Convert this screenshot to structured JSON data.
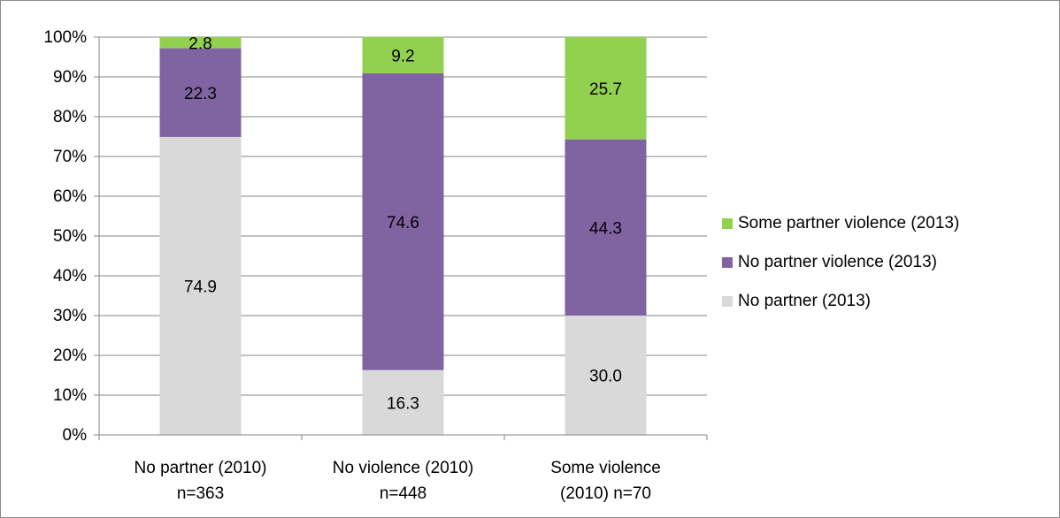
{
  "chart_data": {
    "type": "bar",
    "stacked": true,
    "percent_stacked": true,
    "categories": [
      [
        "No partner (2010)",
        "n=363"
      ],
      [
        "No violence (2010)",
        "n=448"
      ],
      [
        "Some violence",
        "(2010) n=70"
      ]
    ],
    "series": [
      {
        "name": "No partner (2013)",
        "values": [
          74.9,
          16.3,
          30.0
        ],
        "labels": [
          "74.9",
          "16.3",
          "30.0"
        ],
        "color": "#d9d9d9"
      },
      {
        "name": "No partner violence (2013)",
        "values": [
          22.3,
          74.6,
          44.3
        ],
        "labels": [
          "22.3",
          "74.6",
          "44.3"
        ],
        "color": "#8064a2"
      },
      {
        "name": "Some partner violence (2013)",
        "values": [
          2.8,
          9.2,
          25.7
        ],
        "labels": [
          "2.8",
          "9.2",
          "25.7"
        ],
        "color": "#92d050"
      }
    ],
    "legend_order": [
      "Some partner violence (2013)",
      "No partner violence (2013)",
      "No partner (2013)"
    ],
    "ylim": [
      0,
      100
    ],
    "yticks": [
      "0%",
      "10%",
      "20%",
      "30%",
      "40%",
      "50%",
      "60%",
      "70%",
      "80%",
      "90%",
      "100%"
    ],
    "grid": true,
    "legend_position": "right",
    "title": "",
    "xlabel": "",
    "ylabel": ""
  }
}
